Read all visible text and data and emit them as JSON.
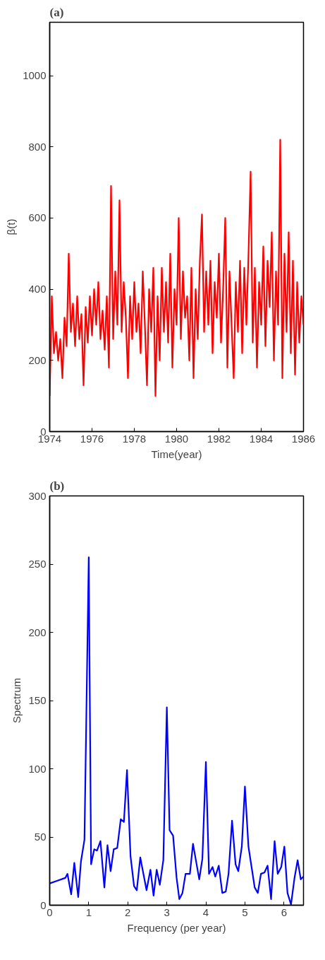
{
  "chart_data": [
    {
      "type": "line",
      "title": "(a)",
      "xlabel": "Time(year)",
      "ylabel": "β(t)",
      "xlim": [
        1974,
        1986
      ],
      "ylim": [
        0,
        1150
      ],
      "xticks": [
        1974,
        1976,
        1978,
        1980,
        1982,
        1984,
        1986
      ],
      "yticks": [
        0,
        200,
        400,
        600,
        800,
        1000
      ],
      "grid": false,
      "x": [
        1974.0,
        1974.1,
        1974.2,
        1974.3,
        1974.4,
        1974.5,
        1974.6,
        1974.7,
        1974.8,
        1974.9,
        1975.0,
        1975.1,
        1975.2,
        1975.3,
        1975.4,
        1975.5,
        1975.6,
        1975.7,
        1975.8,
        1975.9,
        1976.0,
        1976.1,
        1976.2,
        1976.3,
        1976.4,
        1976.5,
        1976.6,
        1976.7,
        1976.8,
        1976.9,
        1977.0,
        1977.1,
        1977.2,
        1977.3,
        1977.4,
        1977.5,
        1977.6,
        1977.7,
        1977.8,
        1977.9,
        1978.0,
        1978.1,
        1978.2,
        1978.3,
        1978.4,
        1978.5,
        1978.6,
        1978.7,
        1978.8,
        1978.9,
        1979.0,
        1979.1,
        1979.2,
        1979.3,
        1979.4,
        1979.5,
        1979.6,
        1979.7,
        1979.8,
        1979.9,
        1980.0,
        1980.1,
        1980.2,
        1980.3,
        1980.4,
        1980.5,
        1980.6,
        1980.7,
        1980.8,
        1980.9,
        1981.0,
        1981.1,
        1981.2,
        1981.3,
        1981.4,
        1981.5,
        1981.6,
        1981.7,
        1981.8,
        1981.9,
        1982.0,
        1982.1,
        1982.2,
        1982.3,
        1982.4,
        1982.5,
        1982.6,
        1982.7,
        1982.8,
        1982.9,
        1983.0,
        1983.1,
        1983.2,
        1983.3,
        1983.4,
        1983.5,
        1983.6,
        1983.7,
        1983.8,
        1983.9,
        1984.0,
        1984.1,
        1984.2,
        1984.3,
        1984.4,
        1984.5,
        1984.6,
        1984.7,
        1984.8,
        1984.9,
        1985.0,
        1985.1,
        1985.2,
        1985.3,
        1985.4,
        1985.5,
        1985.6,
        1985.7,
        1985.8,
        1985.9,
        1986.0
      ],
      "series": [
        {
          "color": "#ff0000",
          "values": [
            100,
            380,
            220,
            280,
            200,
            260,
            150,
            320,
            240,
            500,
            280,
            360,
            240,
            380,
            260,
            330,
            130,
            350,
            250,
            380,
            270,
            400,
            300,
            420,
            260,
            340,
            230,
            380,
            180,
            690,
            260,
            450,
            300,
            650,
            280,
            420,
            320,
            150,
            380,
            260,
            420,
            280,
            360,
            220,
            450,
            300,
            130,
            400,
            280,
            460,
            100,
            380,
            200,
            460,
            280,
            420,
            250,
            500,
            180,
            400,
            300,
            600,
            260,
            450,
            320,
            380,
            200,
            460,
            150,
            400,
            260,
            480,
            610,
            280,
            450,
            300,
            480,
            220,
            420,
            320,
            500,
            250,
            400,
            600,
            180,
            450,
            300,
            150,
            420,
            280,
            480,
            220,
            460,
            300,
            500,
            730,
            250,
            460,
            180,
            420,
            300,
            520,
            240,
            480,
            350,
            560,
            200,
            450,
            300,
            820,
            150,
            500,
            280,
            560,
            220,
            480,
            160,
            420,
            250,
            380,
            300
          ]
        }
      ]
    },
    {
      "type": "line",
      "title": "(b)",
      "xlabel": "Frequency (per year)",
      "ylabel": "Spectrum",
      "xlim": [
        0,
        6.5
      ],
      "ylim": [
        0,
        300
      ],
      "xticks": [
        0,
        1,
        2,
        3,
        4,
        5,
        6
      ],
      "yticks": [
        0,
        50,
        100,
        150,
        200,
        250,
        300
      ],
      "grid": false,
      "x": [
        0,
        0.2,
        0.4,
        0.455,
        0.55,
        0.63,
        0.73,
        0.8,
        0.89,
        1.0,
        1.06,
        1.14,
        1.21,
        1.3,
        1.4,
        1.48,
        1.56,
        1.64,
        1.73,
        1.82,
        1.9,
        1.98,
        2.07,
        2.16,
        2.23,
        2.32,
        2.48,
        2.58,
        2.66,
        2.74,
        2.82,
        2.91,
        3.0,
        3.07,
        3.16,
        3.25,
        3.32,
        3.4,
        3.48,
        3.59,
        3.67,
        3.83,
        3.91,
        4.0,
        4.08,
        4.17,
        4.24,
        4.33,
        4.42,
        4.51,
        4.58,
        4.67,
        4.76,
        4.83,
        4.92,
        5.0,
        5.09,
        5.17,
        5.25,
        5.33,
        5.41,
        5.5,
        5.58,
        5.67,
        5.76,
        5.84,
        5.93,
        6.01,
        6.09,
        6.18,
        6.27,
        6.35,
        6.43,
        6.5
      ],
      "series": [
        {
          "color": "#0000ff",
          "values": [
            16,
            18,
            20,
            23,
            8,
            31,
            6,
            32,
            48,
            255,
            30,
            41,
            40,
            47,
            13,
            44,
            25,
            41,
            42,
            63,
            61,
            99,
            36,
            14,
            11,
            35,
            11,
            26,
            7,
            26,
            15,
            33,
            145,
            55,
            51,
            20,
            4.5,
            9,
            23,
            23,
            45,
            19,
            34,
            105,
            23,
            28,
            21,
            29,
            9,
            10,
            23,
            62,
            30,
            25,
            43,
            87,
            43,
            28,
            13,
            9,
            23,
            24,
            29,
            4.5,
            47,
            23,
            28,
            43,
            9,
            0.5,
            20,
            33,
            19,
            21
          ]
        }
      ]
    }
  ]
}
